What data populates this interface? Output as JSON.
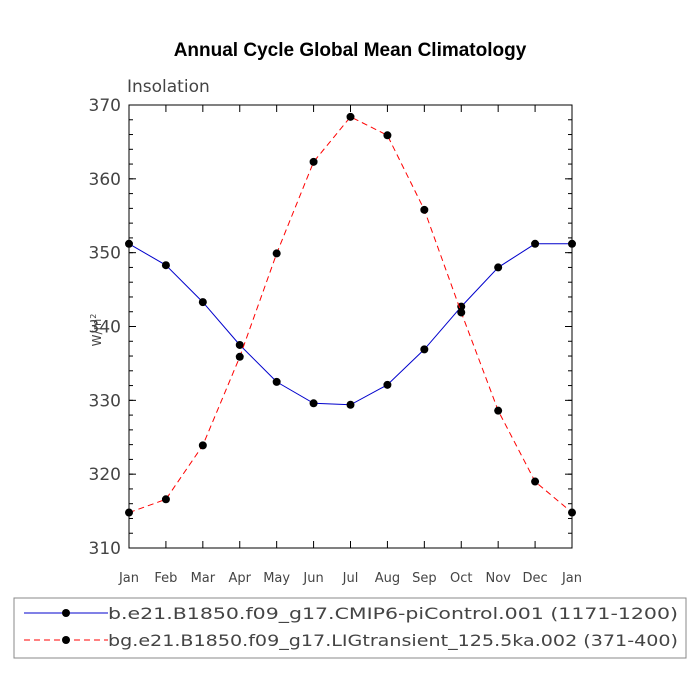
{
  "chart_data": {
    "type": "line",
    "title": "Annual Cycle Global Mean Climatology",
    "subtitle": "Insolation",
    "xlabel": "",
    "ylabel_base": "W/m",
    "ylabel_sup": "2",
    "categories": [
      "Jan",
      "Feb",
      "Mar",
      "Apr",
      "May",
      "Jun",
      "Jul",
      "Aug",
      "Sep",
      "Oct",
      "Nov",
      "Dec",
      "Jan"
    ],
    "ylim": [
      310,
      370
    ],
    "yticks": [
      310,
      320,
      330,
      340,
      350,
      360,
      370
    ],
    "grid": false,
    "legend_position": "bottom",
    "series": [
      {
        "name": "b.e21.B1850.f09_g17.CMIP6-piControl.001 (1171-1200)",
        "color": "#0000cc",
        "dash": "solid",
        "values": [
          351.2,
          348.3,
          343.3,
          337.5,
          332.5,
          329.6,
          329.4,
          332.1,
          336.9,
          342.7,
          348.0,
          351.2,
          351.2
        ]
      },
      {
        "name": "bg.e21.B1850.f09_g17.LIGtransient_125.5ka.002 (371-400)",
        "color": "#ff0000",
        "dash": "dashed",
        "values": [
          314.8,
          316.6,
          323.9,
          335.9,
          349.9,
          362.3,
          368.4,
          365.9,
          355.8,
          341.9,
          328.6,
          319.0,
          314.8
        ]
      }
    ]
  }
}
